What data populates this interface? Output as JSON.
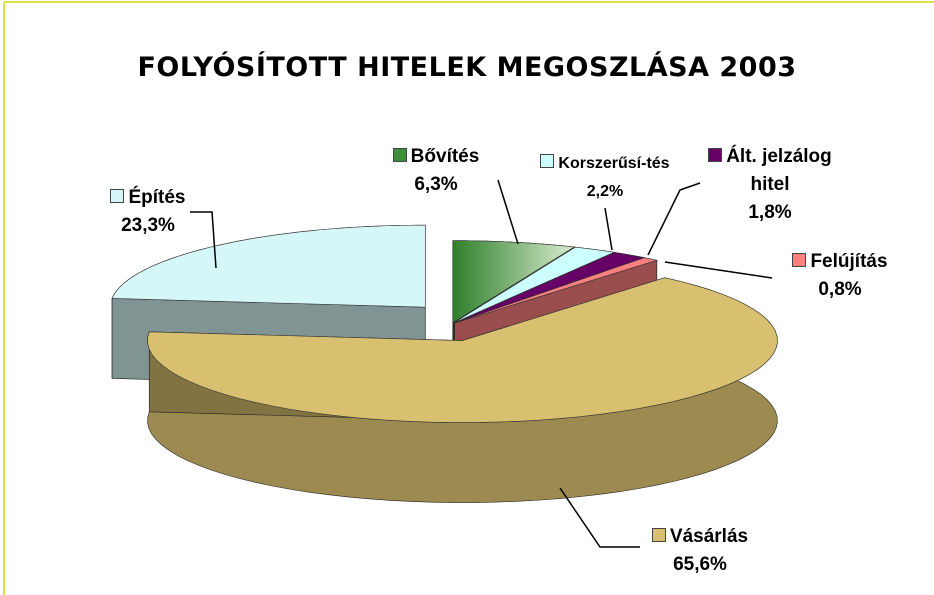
{
  "chart_data": {
    "type": "pie3d",
    "title": "FOLYÓSÍTOTT HITELEK MEGOSZLÁSA 2003",
    "categories": [
      "Bővítés",
      "Korszerűsí-tés",
      "Ált. jelzálog hitel",
      "Felújítás",
      "Vásárlás",
      "Építés"
    ],
    "values": [
      6.3,
      2.2,
      1.8,
      0.8,
      65.6,
      23.3
    ],
    "value_labels": [
      "6,3%",
      "2,2%",
      "1,8%",
      "0,8%",
      "65,6%",
      "23,3%"
    ],
    "colors": [
      "#3f8f3a",
      "#ccffff",
      "#660066",
      "#ff8080",
      "#d8c070",
      "#d6f7f7"
    ]
  }
}
